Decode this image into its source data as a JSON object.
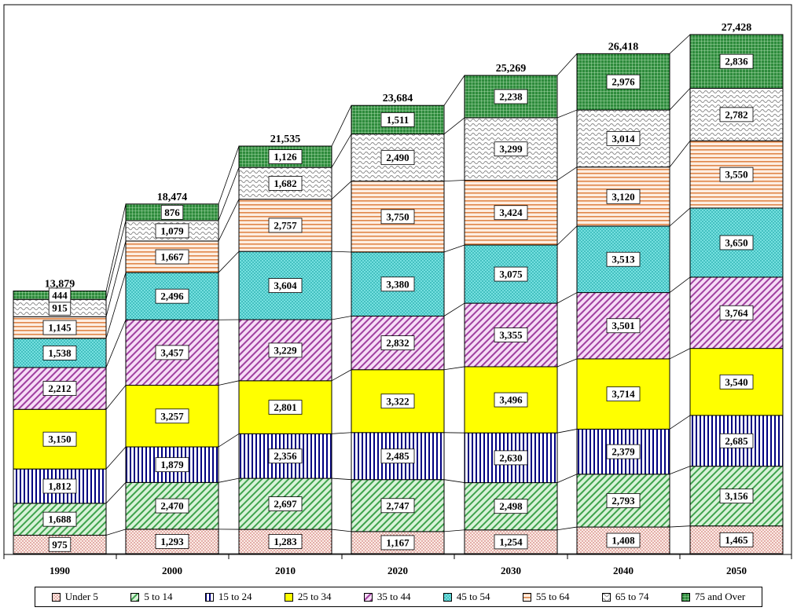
{
  "chart_data": {
    "type": "bar",
    "stacked": true,
    "categories": [
      "1990",
      "2000",
      "2010",
      "2020",
      "2030",
      "2040",
      "2050"
    ],
    "totals": [
      "13,879",
      "18,474",
      "21,535",
      "23,684",
      "25,269",
      "26,418",
      "27,428"
    ],
    "series": [
      {
        "name": "Under 5",
        "color": "#f4d2c6",
        "pattern": "dots",
        "values": [
          975,
          1293,
          1283,
          1167,
          1254,
          1408,
          1465
        ]
      },
      {
        "name": "5 to 14",
        "color": "#b6e3b6",
        "pattern": "diag",
        "values": [
          1688,
          2470,
          2697,
          2747,
          2498,
          2793,
          3156
        ]
      },
      {
        "name": "15 to 24",
        "color": "#000080",
        "pattern": "vert",
        "values": [
          1812,
          1879,
          2356,
          2485,
          2630,
          2379,
          2685
        ]
      },
      {
        "name": "25 to 34",
        "color": "#ffff00",
        "pattern": "solid",
        "values": [
          3150,
          3257,
          2801,
          3322,
          3496,
          3714,
          3540
        ]
      },
      {
        "name": "35 to 44",
        "color": "#cc66cc",
        "pattern": "diag",
        "values": [
          2212,
          3457,
          3229,
          2832,
          3355,
          3501,
          3764
        ]
      },
      {
        "name": "45 to 54",
        "color": "#66e0e0",
        "pattern": "cross",
        "values": [
          1538,
          2496,
          3604,
          3380,
          3075,
          3513,
          3650
        ]
      },
      {
        "name": "55 to 64",
        "color": "#e69966",
        "pattern": "horiz",
        "values": [
          1145,
          1667,
          2757,
          3750,
          3424,
          3120,
          3550
        ]
      },
      {
        "name": "65 to 74",
        "color": "#9a9a9a",
        "pattern": "wave",
        "values": [
          915,
          1079,
          1682,
          2490,
          3299,
          3014,
          2782
        ]
      },
      {
        "name": "75 and Over",
        "color": "#2e8b3c",
        "pattern": "grid",
        "values": [
          444,
          876,
          1126,
          1511,
          2238,
          2976,
          2836
        ]
      }
    ],
    "value_labels": [
      [
        "975",
        "1,688",
        "1,812",
        "3,150",
        "2,212",
        "1,538",
        "1,145",
        "915",
        "444"
      ],
      [
        "1,293",
        "2,470",
        "1,879",
        "3,257",
        "3,457",
        "2,496",
        "1,667",
        "1,079",
        "876"
      ],
      [
        "1,283",
        "2,697",
        "2,356",
        "2,801",
        "3,229",
        "3,604",
        "2,757",
        "1,682",
        "1,126"
      ],
      [
        "1,167",
        "2,747",
        "2,485",
        "3,322",
        "2,832",
        "3,380",
        "3,750",
        "2,490",
        "1,511"
      ],
      [
        "1,254",
        "2,498",
        "2,630",
        "3,496",
        "3,355",
        "3,075",
        "3,424",
        "3,299",
        "2,238"
      ],
      [
        "1,408",
        "2,793",
        "2,379",
        "3,714",
        "3,501",
        "3,513",
        "3,120",
        "3,014",
        "2,976"
      ],
      [
        "1,465",
        "3,156",
        "2,685",
        "3,540",
        "3,764",
        "3,650",
        "3,550",
        "2,782",
        "2,836"
      ]
    ],
    "ylim": [
      0,
      28500
    ],
    "legend_position": "bottom",
    "grid": false,
    "title": "",
    "xlabel": "",
    "ylabel": ""
  }
}
